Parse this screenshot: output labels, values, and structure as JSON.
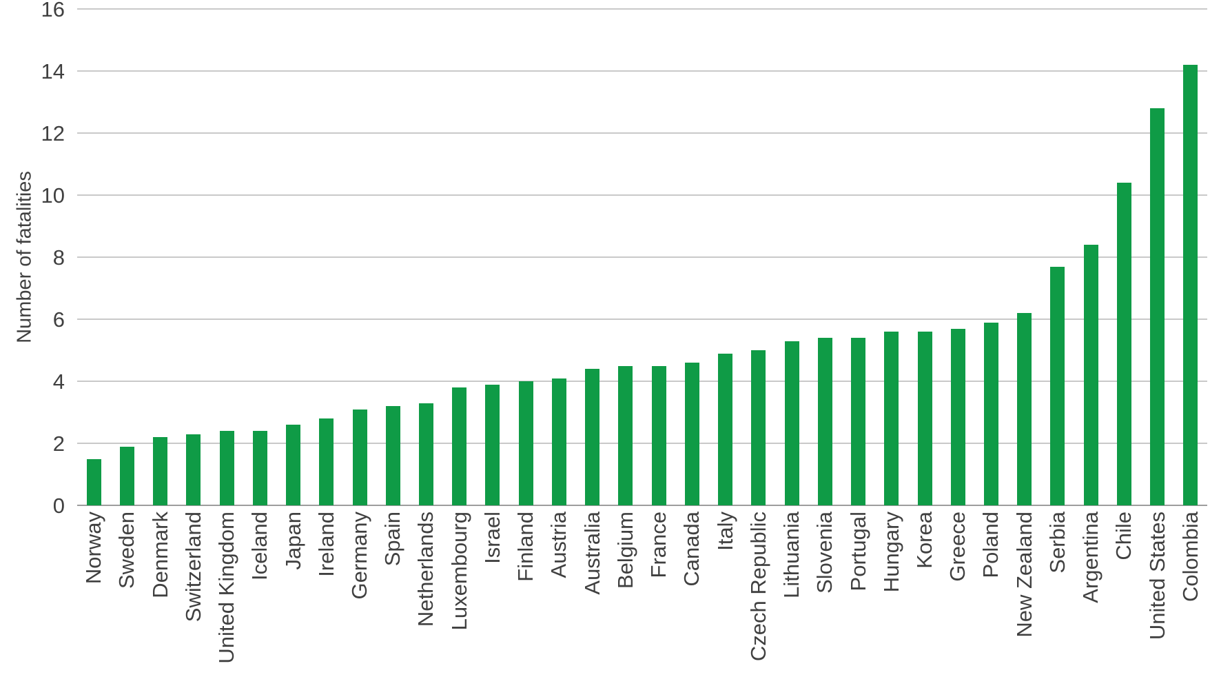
{
  "chart_data": {
    "type": "bar",
    "title": "",
    "xlabel": "",
    "ylabel": "Number of fatalities",
    "categories": [
      "Norway",
      "Sweden",
      "Denmark",
      "Switzerland",
      "United Kingdom",
      "Iceland",
      "Japan",
      "Ireland",
      "Germany",
      "Spain",
      "Netherlands",
      "Luxembourg",
      "Israel",
      "Finland",
      "Austria",
      "Australia",
      "Belgium",
      "France",
      "Canada",
      "Italy",
      "Czech Republic",
      "Lithuania",
      "Slovenia",
      "Portugal",
      "Hungary",
      "Korea",
      "Greece",
      "Poland",
      "New Zealand",
      "Serbia",
      "Argentina",
      "Chile",
      "United States",
      "Colombia"
    ],
    "values": [
      1.5,
      1.9,
      2.2,
      2.3,
      2.4,
      2.4,
      2.6,
      2.8,
      3.1,
      3.2,
      3.3,
      3.8,
      3.9,
      4.0,
      4.1,
      4.4,
      4.5,
      4.5,
      4.6,
      4.9,
      5.0,
      5.3,
      5.4,
      5.4,
      5.6,
      5.6,
      5.7,
      5.9,
      6.2,
      7.7,
      8.4,
      10.4,
      12.8,
      14.2
    ],
    "ylim": [
      0,
      16
    ],
    "yticks": [
      0,
      2,
      4,
      6,
      8,
      10,
      12,
      14,
      16
    ],
    "grid": "horizontal-only",
    "legend_position": "none",
    "bar_color": "#0f9b46"
  },
  "colors": {
    "bar": "#0f9b46",
    "gridline": "#c9c9c9",
    "axis_line": "#9d9d9d",
    "text": "#404040",
    "background": "#ffffff"
  }
}
